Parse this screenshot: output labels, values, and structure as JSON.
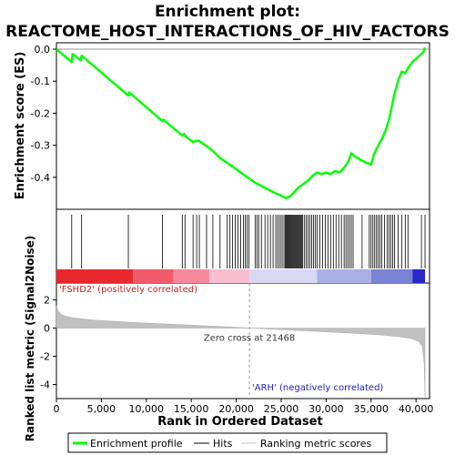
{
  "chart_data": {
    "type": "line",
    "title_line1": "Enrichment plot:",
    "title_line2": "REACTOME_HOST_INTERACTIONS_OF_HIV_FACTORS",
    "xlabel": "Rank in Ordered Dataset",
    "ylabel_top": "Enrichment score (ES)",
    "ylabel_bottom": "Ranked list metric (Signal2Noise)",
    "xlim": [
      0,
      41500
    ],
    "es_ylim": [
      -0.5,
      0.02
    ],
    "metric_ylim": [
      -5,
      3.2
    ],
    "x_ticks": [
      0,
      5000,
      10000,
      15000,
      20000,
      25000,
      30000,
      35000,
      40000
    ],
    "x_tick_labels": [
      "0",
      "5,000",
      "10,000",
      "15,000",
      "20,000",
      "25,000",
      "30,000",
      "35,000",
      "40,000"
    ],
    "es_ticks": [
      0.0,
      -0.1,
      -0.2,
      -0.3,
      -0.4
    ],
    "es_tick_labels": [
      "0.0",
      "-0.1",
      "-0.2",
      "-0.3",
      "-0.4"
    ],
    "metric_ticks": [
      2,
      0,
      -2,
      -4
    ],
    "metric_tick_labels": [
      "2",
      "0",
      "-2",
      "-4"
    ],
    "es_color": "#00ff00",
    "enrichment_profile": {
      "x": [
        0,
        1700,
        1800,
        2700,
        2800,
        8000,
        8100,
        11800,
        11900,
        14000,
        14200,
        14500,
        15200,
        15800,
        16800,
        17500,
        18200,
        19000,
        20000,
        21000,
        22000,
        23000,
        24000,
        24800,
        25500,
        26000,
        26500,
        27000,
        27500,
        28000,
        28500,
        29000,
        29500,
        30000,
        30500,
        31000,
        31500,
        32000,
        32500,
        32800,
        33200,
        33800,
        34500,
        35000,
        35300,
        35800,
        36200,
        36600,
        37000,
        37300,
        37600,
        38000,
        38400,
        38800,
        39200,
        39600,
        40000,
        40400,
        40800,
        41000
      ],
      "y": [
        0.0,
        -0.04,
        -0.015,
        -0.035,
        -0.02,
        -0.145,
        -0.135,
        -0.225,
        -0.22,
        -0.27,
        -0.265,
        -0.275,
        -0.29,
        -0.285,
        -0.305,
        -0.32,
        -0.34,
        -0.355,
        -0.375,
        -0.395,
        -0.415,
        -0.43,
        -0.445,
        -0.455,
        -0.465,
        -0.46,
        -0.445,
        -0.43,
        -0.42,
        -0.41,
        -0.395,
        -0.385,
        -0.39,
        -0.385,
        -0.39,
        -0.38,
        -0.385,
        -0.37,
        -0.35,
        -0.325,
        -0.335,
        -0.345,
        -0.355,
        -0.36,
        -0.33,
        -0.3,
        -0.28,
        -0.255,
        -0.22,
        -0.18,
        -0.14,
        -0.1,
        -0.07,
        -0.075,
        -0.055,
        -0.04,
        -0.03,
        -0.02,
        -0.01,
        0.005
      ]
    },
    "hits": [
      1700,
      2800,
      8000,
      11800,
      14000,
      14300,
      15200,
      15600,
      15900,
      16700,
      17400,
      18200,
      19000,
      19300,
      19600,
      19900,
      20200,
      20500,
      20800,
      21000,
      21200,
      21400,
      22100,
      22300,
      22500,
      22800,
      23200,
      23500,
      23800,
      24100,
      24400,
      24600,
      24800,
      25000,
      25200,
      25400,
      25500,
      25600,
      25700,
      25800,
      25900,
      26000,
      26100,
      26200,
      26300,
      26400,
      26500,
      26600,
      26700,
      26800,
      26900,
      27000,
      27100,
      27200,
      27300,
      27400,
      27600,
      27800,
      28000,
      28200,
      28400,
      28600,
      28800,
      29000,
      29300,
      29600,
      29900,
      30200,
      30500,
      30800,
      31100,
      31400,
      31700,
      32000,
      32200,
      32400,
      32600,
      32800,
      33000,
      34000,
      34800,
      35000,
      35200,
      35400,
      35600,
      35800,
      36000,
      36200,
      36500,
      36800,
      37000,
      37200,
      37400,
      37600,
      38000,
      38400,
      38800,
      39100,
      40600,
      41000
    ],
    "heatmap_segments": [
      {
        "from": 0,
        "to": 8500,
        "color": "#e8282c"
      },
      {
        "from": 8500,
        "to": 13000,
        "color": "#f05a6a"
      },
      {
        "from": 13000,
        "to": 17000,
        "color": "#f48a9a"
      },
      {
        "from": 17000,
        "to": 21468,
        "color": "#f8bed0"
      },
      {
        "from": 21468,
        "to": 29000,
        "color": "#d8d8f4"
      },
      {
        "from": 29000,
        "to": 35000,
        "color": "#aab0e6"
      },
      {
        "from": 35000,
        "to": 39600,
        "color": "#7a84d6"
      },
      {
        "from": 39600,
        "to": 41000,
        "color": "#2828cc"
      }
    ],
    "metric_profile": {
      "x": [
        0,
        200,
        600,
        1000,
        2000,
        4000,
        8000,
        12000,
        16000,
        20000,
        21468,
        24000,
        28000,
        32000,
        36000,
        38000,
        39500,
        40300,
        40700,
        40900,
        41000
      ],
      "y": [
        1.6,
        1.2,
        0.95,
        0.85,
        0.72,
        0.58,
        0.42,
        0.3,
        0.18,
        0.06,
        0.0,
        -0.08,
        -0.2,
        -0.33,
        -0.48,
        -0.6,
        -0.75,
        -0.95,
        -1.3,
        -2.5,
        -4.9
      ]
    },
    "zero_cross": 21468,
    "zero_cross_label": "Zero cross at 21468",
    "pos_label": "'FSHD2' (positively correlated)",
    "neg_label": "'ARH' (negatively correlated)",
    "legend": {
      "position": "bottom",
      "items": [
        {
          "label": "Enrichment profile",
          "color": "#00ff00",
          "style": "thick-line"
        },
        {
          "label": "Hits",
          "color": "#000000",
          "style": "line"
        },
        {
          "label": "Ranking metric scores",
          "color": "#c0c0c0",
          "style": "line"
        }
      ]
    }
  }
}
